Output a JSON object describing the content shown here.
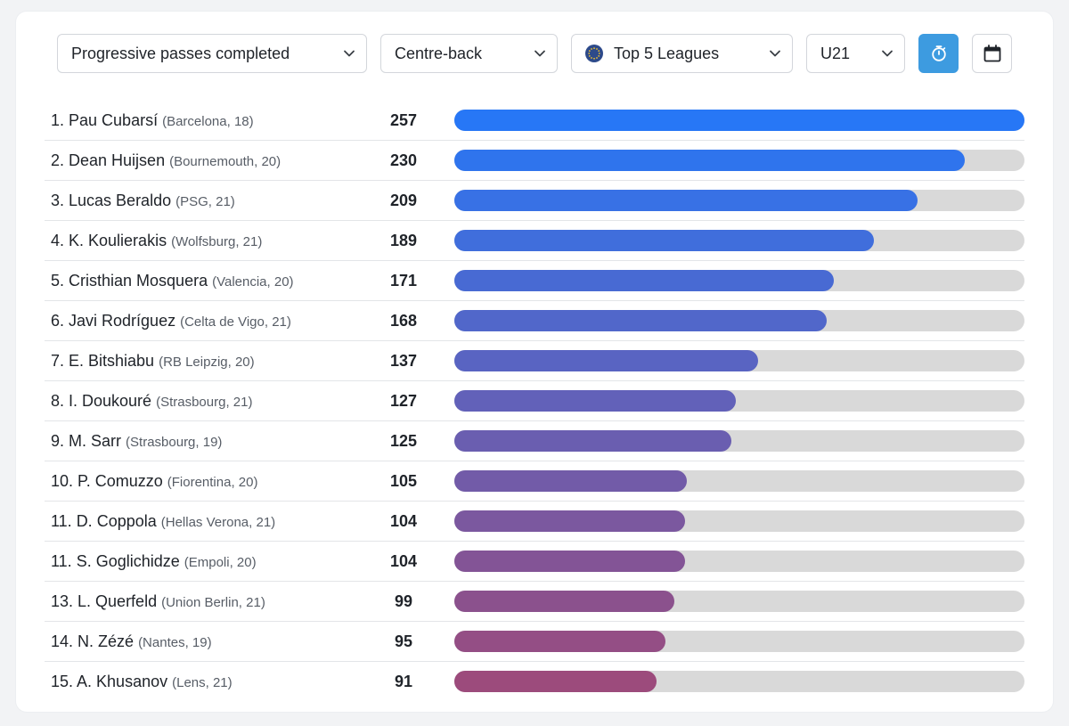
{
  "filters": {
    "metric": "Progressive passes completed",
    "position": "Centre-back",
    "competition": "Top 5 Leagues",
    "age": "U21"
  },
  "icons": {
    "chevron": "chevron-down-icon",
    "competition": "globe-icon",
    "timer": "stopwatch-icon",
    "calendar": "calendar-icon"
  },
  "colors": {
    "first": "#2777f6",
    "last": "#9c4b7c",
    "track": "#d9d9d9",
    "active_button": "#3d9be0"
  },
  "chart_data": {
    "type": "bar",
    "orientation": "horizontal",
    "rows": [
      {
        "rank": "1.",
        "name": "Pau Cubarsí",
        "meta": "(Barcelona, 18)",
        "value": 257
      },
      {
        "rank": "2.",
        "name": "Dean Huijsen",
        "meta": "(Bournemouth, 20)",
        "value": 230
      },
      {
        "rank": "3.",
        "name": "Lucas Beraldo",
        "meta": "(PSG, 21)",
        "value": 209
      },
      {
        "rank": "4.",
        "name": "K. Koulierakis",
        "meta": "(Wolfsburg, 21)",
        "value": 189
      },
      {
        "rank": "5.",
        "name": "Cristhian Mosquera",
        "meta": "(Valencia, 20)",
        "value": 171
      },
      {
        "rank": "6.",
        "name": "Javi Rodríguez",
        "meta": "(Celta de Vigo, 21)",
        "value": 168
      },
      {
        "rank": "7.",
        "name": "E. Bitshiabu",
        "meta": "(RB Leipzig, 20)",
        "value": 137
      },
      {
        "rank": "8.",
        "name": "I. Doukouré",
        "meta": "(Strasbourg, 21)",
        "value": 127
      },
      {
        "rank": "9.",
        "name": "M. Sarr",
        "meta": "(Strasbourg, 19)",
        "value": 125
      },
      {
        "rank": "10.",
        "name": "P. Comuzzo",
        "meta": "(Fiorentina, 20)",
        "value": 105
      },
      {
        "rank": "11.",
        "name": "D. Coppola",
        "meta": "(Hellas Verona, 21)",
        "value": 104
      },
      {
        "rank": "11.",
        "name": "S. Goglichidze",
        "meta": "(Empoli, 20)",
        "value": 104
      },
      {
        "rank": "13.",
        "name": "L. Querfeld",
        "meta": "(Union Berlin, 21)",
        "value": 99
      },
      {
        "rank": "14.",
        "name": "N. Zézé",
        "meta": "(Nantes, 19)",
        "value": 95
      },
      {
        "rank": "15.",
        "name": "A. Khusanov",
        "meta": "(Lens, 21)",
        "value": 91
      }
    ],
    "xlim": [
      0,
      257
    ],
    "grid": false,
    "legend": false
  }
}
